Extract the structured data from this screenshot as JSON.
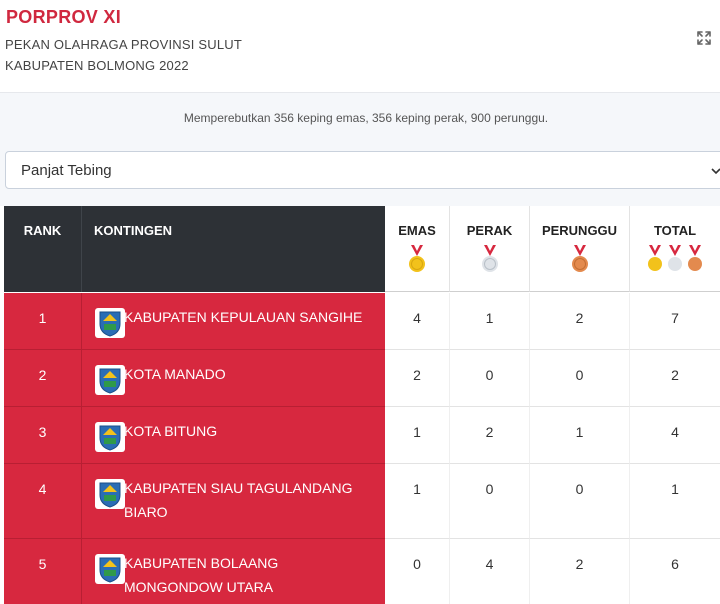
{
  "header": {
    "title": "PORPROV XI",
    "subtitle_1": "PEKAN OLAHRAGA PROVINSI SULUT",
    "subtitle_2": "KABUPATEN BOLMONG 2022",
    "expand_icon": "expand-arrows-icon"
  },
  "summary": "Memperebutkan 356 keping emas, 356 keping perak, 900 perunggu.",
  "filter": {
    "selected": "Panjat Tebing"
  },
  "table": {
    "columns": {
      "rank": "RANK",
      "kontingen": "KONTINGEN",
      "emas": "EMAS",
      "perak": "PERAK",
      "perunggu": "PERUNGGU",
      "total": "TOTAL"
    },
    "medal_colors": {
      "ribbon": "#d7283f",
      "gold": "#f2c21b",
      "silver": "#dfe3e8",
      "bronze": "#e38a4e"
    },
    "rows": [
      {
        "rank": "1",
        "name": "KABUPATEN KEPULAUAN SANGIHE",
        "emas": "4",
        "perak": "1",
        "perunggu": "2",
        "total": "7"
      },
      {
        "rank": "2",
        "name": "KOTA MANADO",
        "emas": "2",
        "perak": "0",
        "perunggu": "0",
        "total": "2"
      },
      {
        "rank": "3",
        "name": "KOTA BITUNG",
        "emas": "1",
        "perak": "2",
        "perunggu": "1",
        "total": "4"
      },
      {
        "rank": "4",
        "name": "KABUPATEN SIAU TAGULANDANG BIARO",
        "emas": "1",
        "perak": "0",
        "perunggu": "0",
        "total": "1"
      },
      {
        "rank": "5",
        "name": "KABUPATEN BOLAANG MONGONDOW UTARA",
        "emas": "0",
        "perak": "4",
        "perunggu": "2",
        "total": "6"
      }
    ]
  },
  "theme": {
    "accent_red": "#d7283f",
    "header_dark": "#2d3136"
  }
}
